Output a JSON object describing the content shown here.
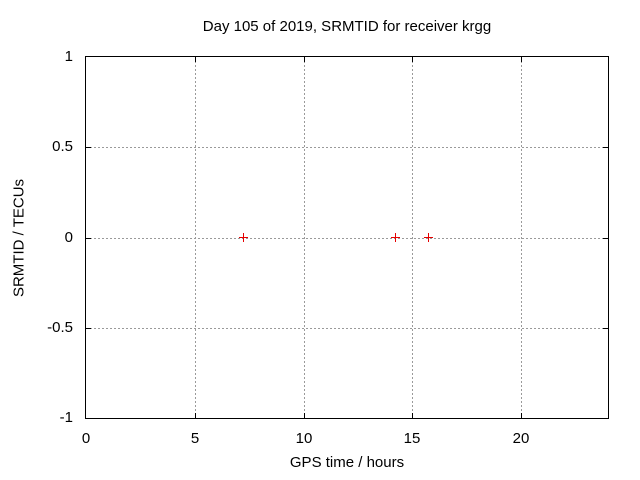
{
  "chart_data": {
    "type": "scatter",
    "title": "Day 105 of 2019, SRMTID for receiver krgg",
    "xlabel": "GPS time / hours",
    "ylabel": "SRMTID / TECUs",
    "xlim": [
      0,
      24
    ],
    "ylim": [
      -1,
      1
    ],
    "xticks": [
      0,
      5,
      10,
      15,
      20
    ],
    "xtick_labels": [
      "0",
      "5",
      "10",
      "15",
      "20"
    ],
    "yticks": [
      1,
      0.5,
      0,
      -0.5,
      -1
    ],
    "ytick_labels": [
      "1",
      "0.5",
      "0",
      "-0.5",
      "-1"
    ],
    "grid": true,
    "grid_style": "dashed",
    "legend_position": "none",
    "series": [
      {
        "name": "SRMTID",
        "marker": "plus",
        "color": "#e60000",
        "points": [
          {
            "x": 7.25,
            "y": 0
          },
          {
            "x": 14.25,
            "y": 0
          },
          {
            "x": 15.75,
            "y": 0
          }
        ]
      }
    ],
    "colors": {
      "background": "#ffffff",
      "frame": "#000000",
      "grid": "#9a9a9a",
      "text": "#000000",
      "marker": "#e60000"
    }
  }
}
